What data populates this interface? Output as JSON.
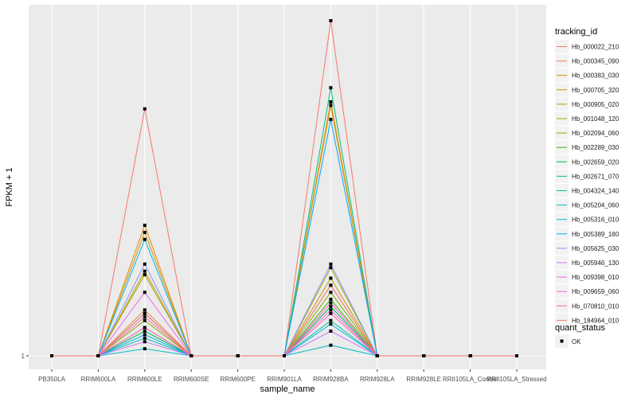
{
  "chart_data": {
    "type": "line",
    "xlabel": "sample_name",
    "ylabel": "FPKM + 1",
    "y_tick_labels": [
      "1"
    ],
    "categories": [
      "PB350LA",
      "RRIM600LA",
      "RRIM600LE",
      "RRIM600SE",
      "RRIM600PE",
      "RRIM901LA",
      "RRIM928BA",
      "RRIM928LA",
      "RRIM928LE",
      "RRII105LA_Control",
      "RRII105LA_Stressed"
    ],
    "grid": true,
    "legend_placement": "right",
    "color_legend_title": "tracking_id",
    "shape_legend_title": "quant_status",
    "shape_legend_label": "OK",
    "series": [
      {
        "name": "Hb_000022_210",
        "color": "#F8766D",
        "values": [
          1,
          1,
          1.7,
          1,
          1,
          1,
          1.95,
          1,
          1,
          1,
          1
        ]
      },
      {
        "name": "Hb_000345_090",
        "color": "#F07E4B",
        "values": [
          1,
          1,
          1.13,
          1,
          1,
          1,
          1.2,
          1,
          1,
          1,
          1
        ]
      },
      {
        "name": "Hb_000383_030",
        "color": "#E38900",
        "values": [
          1,
          1,
          1.37,
          1,
          1,
          1,
          1.72,
          1,
          1,
          1,
          1
        ]
      },
      {
        "name": "Hb_000705_320",
        "color": "#D39200",
        "values": [
          1,
          1,
          1.35,
          1,
          1,
          1,
          1.71,
          1,
          1,
          1,
          1
        ]
      },
      {
        "name": "Hb_000905_020",
        "color": "#C09B00",
        "values": [
          1,
          1,
          1.24,
          1,
          1,
          1,
          1.22,
          1,
          1,
          1,
          1
        ]
      },
      {
        "name": "Hb_001048_120",
        "color": "#A3A500",
        "values": [
          1,
          1,
          1.23,
          1,
          1,
          1,
          1.25,
          1,
          1,
          1,
          1
        ]
      },
      {
        "name": "Hb_002094_060",
        "color": "#7CAE00",
        "values": [
          1,
          1,
          1.1,
          1,
          1,
          1,
          1.18,
          1,
          1,
          1,
          1
        ]
      },
      {
        "name": "Hb_002289_030",
        "color": "#39B600",
        "values": [
          1,
          1,
          1.08,
          1,
          1,
          1,
          1.16,
          1,
          1,
          1,
          1
        ]
      },
      {
        "name": "Hb_002659_020",
        "color": "#00BB4E",
        "values": [
          1,
          1,
          1.07,
          1,
          1,
          1,
          1.14,
          1,
          1,
          1,
          1
        ]
      },
      {
        "name": "Hb_002671_070",
        "color": "#00BF7D",
        "values": [
          1,
          1,
          1.12,
          1,
          1,
          1,
          1.76,
          1,
          1,
          1,
          1
        ]
      },
      {
        "name": "Hb_004324_140",
        "color": "#00C1A3",
        "values": [
          1,
          1,
          1.05,
          1,
          1,
          1,
          1.1,
          1,
          1,
          1,
          1
        ]
      },
      {
        "name": "Hb_005204_060",
        "color": "#00BFC4",
        "values": [
          1,
          1,
          1.02,
          1,
          1,
          1,
          1.03,
          1,
          1,
          1,
          1
        ]
      },
      {
        "name": "Hb_005316_010",
        "color": "#00B8E7",
        "values": [
          1,
          1,
          1.33,
          1,
          1,
          1,
          1.09,
          1,
          1,
          1,
          1
        ]
      },
      {
        "name": "Hb_005389_180",
        "color": "#00A9FF",
        "values": [
          1,
          1,
          1.06,
          1,
          1,
          1,
          1.67,
          1,
          1,
          1,
          1
        ]
      },
      {
        "name": "Hb_005625_030",
        "color": "#8494FF",
        "values": [
          1,
          1,
          1.26,
          1,
          1,
          1,
          1.26,
          1,
          1,
          1,
          1
        ]
      },
      {
        "name": "Hb_005946_130",
        "color": "#C77CFF",
        "values": [
          1,
          1,
          1.04,
          1,
          1,
          1,
          1.07,
          1,
          1,
          1,
          1
        ]
      },
      {
        "name": "Hb_009398_010",
        "color": "#ED68ED",
        "values": [
          1,
          1,
          1.18,
          1,
          1,
          1,
          1.13,
          1,
          1,
          1,
          1
        ]
      },
      {
        "name": "Hb_009659_060",
        "color": "#FF61CC",
        "values": [
          1,
          1,
          1.08,
          1,
          1,
          1,
          1.15,
          1,
          1,
          1,
          1
        ]
      },
      {
        "name": "Hb_070810_010",
        "color": "#FF68A1",
        "values": [
          1,
          1,
          1.11,
          1,
          1,
          1,
          1.12,
          1,
          1,
          1,
          1
        ]
      },
      {
        "name": "Hb_184964_010",
        "color": "#F8766D",
        "values": [
          1,
          1,
          1.12,
          1,
          1,
          1,
          1.2,
          1,
          1,
          1,
          1
        ]
      }
    ]
  }
}
